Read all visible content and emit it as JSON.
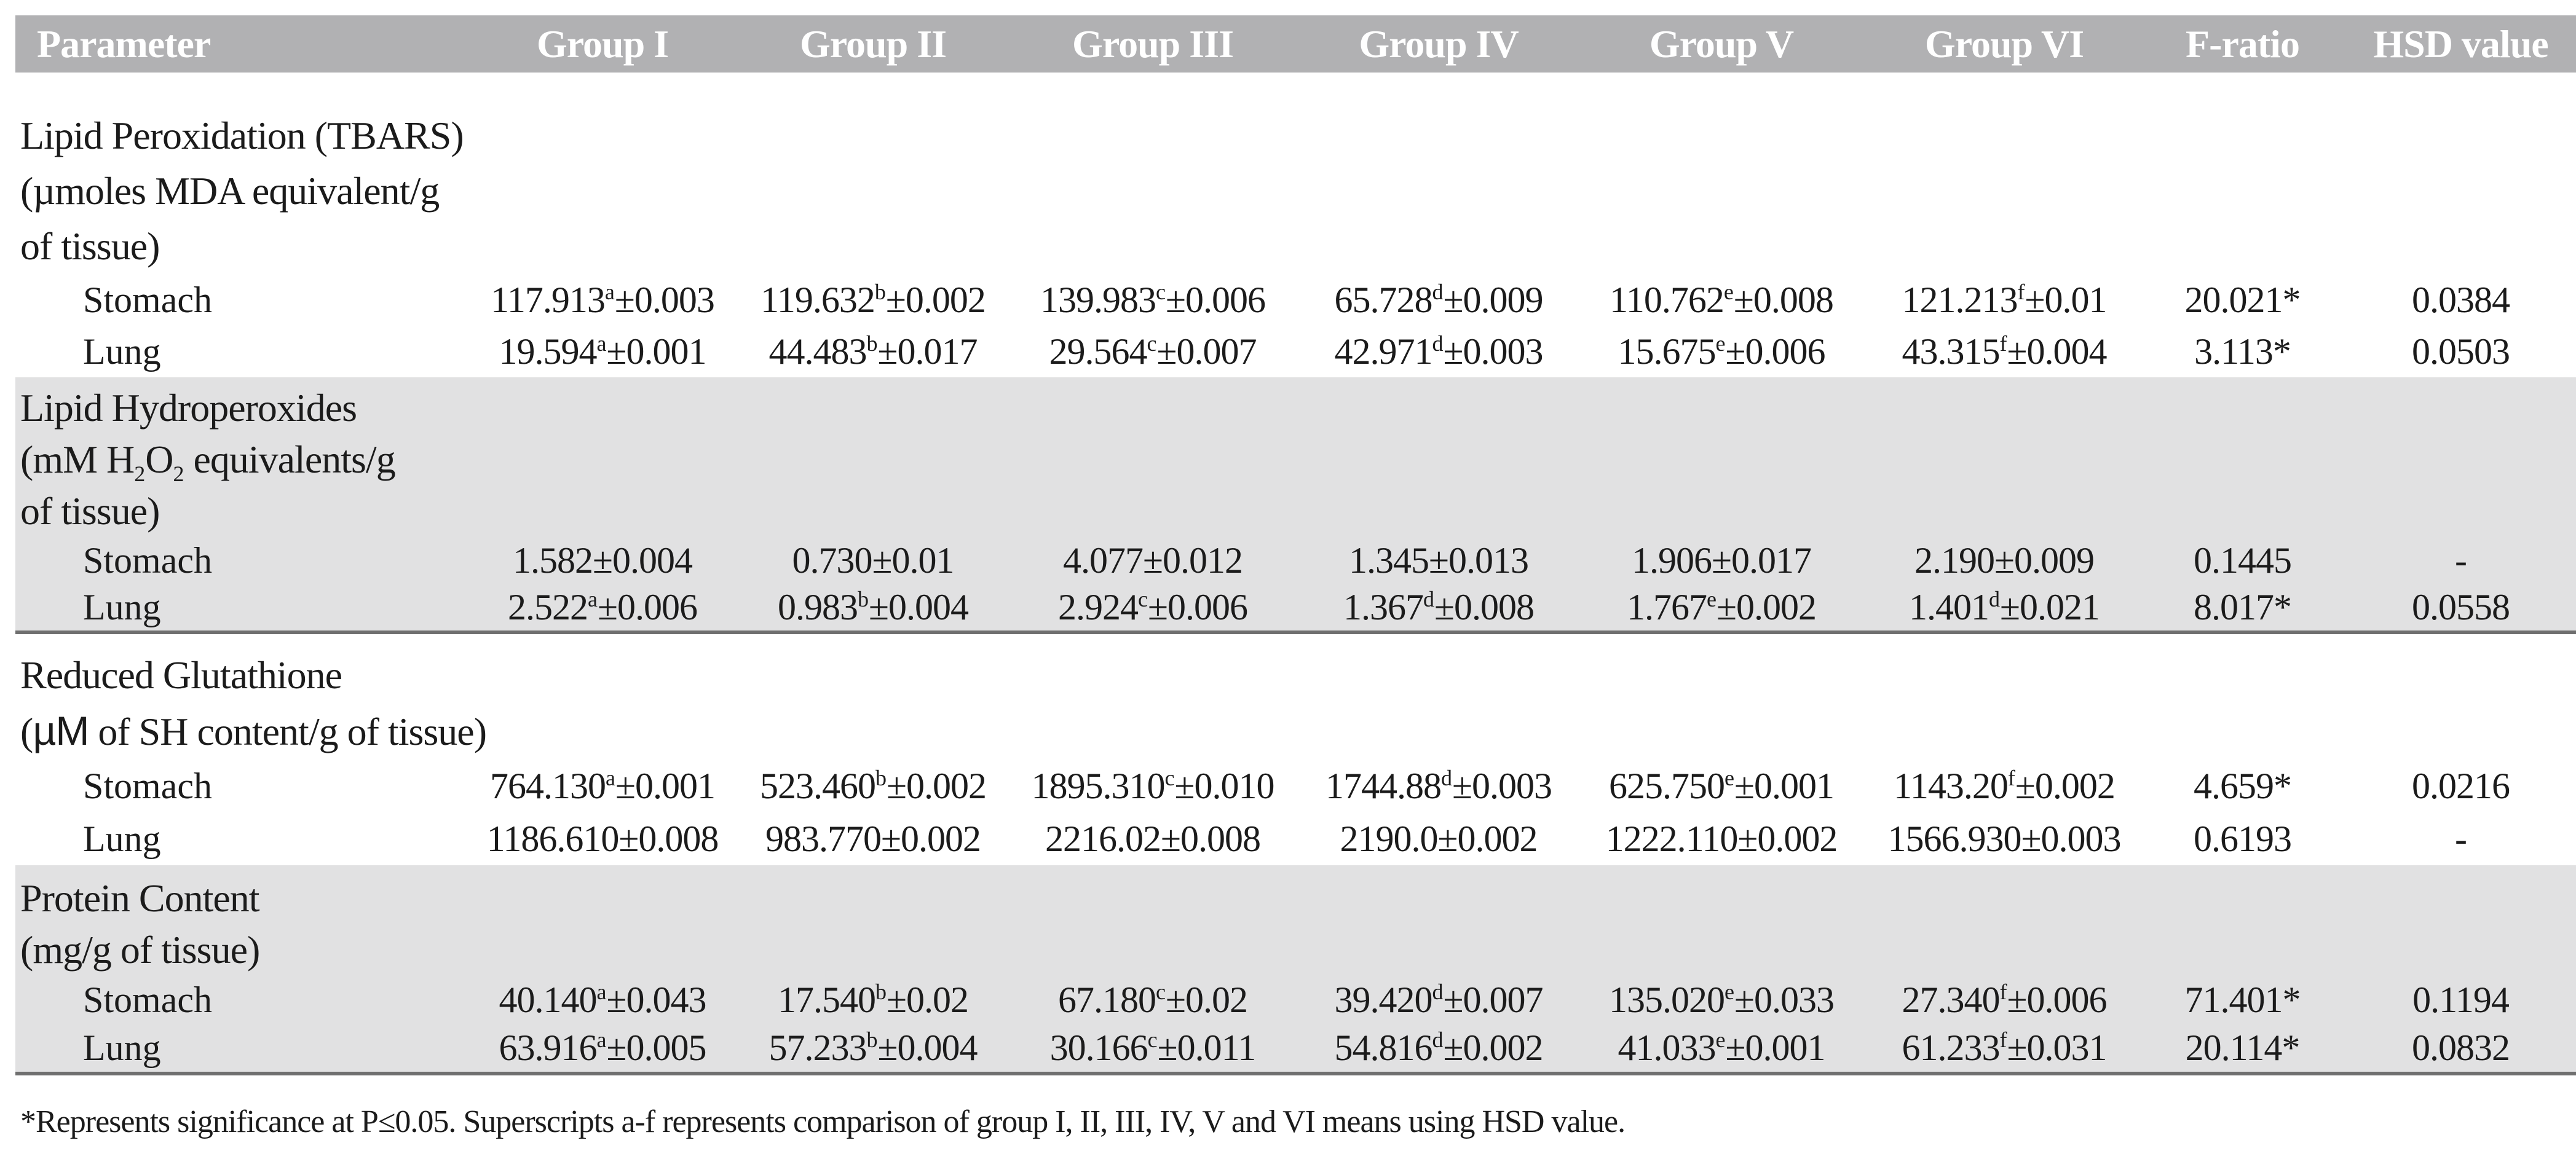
{
  "colors": {
    "header_bg": "#b1b1b3",
    "shade_bg": "#e1e1e2",
    "rule": "#6f6f6f",
    "text": "#1b1b1b",
    "header_text": "#ffffff"
  },
  "table": {
    "columns": [
      {
        "key": "parameter",
        "label": "Parameter"
      },
      {
        "key": "group-i",
        "label": "Group I"
      },
      {
        "key": "group-ii",
        "label": "Group II"
      },
      {
        "key": "group-iii",
        "label": "Group III"
      },
      {
        "key": "group-iv",
        "label": "Group IV"
      },
      {
        "key": "group-v",
        "label": "Group V"
      },
      {
        "key": "group-vi",
        "label": "Group VI"
      },
      {
        "key": "f-ratio",
        "label": "F-ratio"
      },
      {
        "key": "hsd-value",
        "label": "HSD value"
      }
    ],
    "sections": [
      {
        "shaded": false,
        "bottom_rule": false,
        "title_lines": [
          [
            {
              "t": "Lipid Peroxidation (TBARS)"
            }
          ],
          [
            {
              "t": "(µmoles MDA equivalent/g"
            }
          ],
          [
            {
              "t": "of tissue)"
            }
          ]
        ],
        "rows": [
          {
            "label": "Stomach",
            "cells": [
              {
                "m": "117.913",
                "s": "a",
                "e": "0.003"
              },
              {
                "m": "119.632",
                "s": "b",
                "e": "0.002"
              },
              {
                "m": "139.983",
                "s": "c",
                "e": "0.006"
              },
              {
                "m": "65.728",
                "s": "d",
                "e": "0.009"
              },
              {
                "m": "110.762",
                "s": "e",
                "e": "0.008"
              },
              {
                "m": "121.213",
                "s": "f",
                "e": "0.01"
              },
              {
                "m": "20.021*"
              },
              {
                "m": "0.0384"
              }
            ]
          },
          {
            "label": "Lung",
            "cells": [
              {
                "m": "19.594",
                "s": "a",
                "e": "0.001"
              },
              {
                "m": "44.483",
                "s": "b",
                "e": "0.017"
              },
              {
                "m": "29.564",
                "s": "c",
                "e": "0.007"
              },
              {
                "m": "42.971",
                "s": "d",
                "e": "0.003"
              },
              {
                "m": "15.675",
                "s": "e",
                "e": "0.006"
              },
              {
                "m": "43.315",
                "s": "f",
                "e": "0.004"
              },
              {
                "m": "3.113*"
              },
              {
                "m": "0.0503"
              }
            ]
          }
        ]
      },
      {
        "shaded": true,
        "bottom_rule": true,
        "title_lines": [
          [
            {
              "t": "Lipid Hydroperoxides"
            }
          ],
          [
            {
              "t": "(mM H"
            },
            {
              "sub": "2"
            },
            {
              "t": "O"
            },
            {
              "sub": "2"
            },
            {
              "t": " equivalents/g"
            }
          ],
          [
            {
              "t": "of tissue)"
            }
          ]
        ],
        "rows": [
          {
            "label": "Stomach",
            "cells": [
              {
                "m": "1.582",
                "e": "0.004"
              },
              {
                "m": "0.730",
                "e": "0.01"
              },
              {
                "m": "4.077",
                "e": "0.012"
              },
              {
                "m": "1.345",
                "e": "0.013"
              },
              {
                "m": "1.906",
                "e": "0.017"
              },
              {
                "m": "2.190",
                "e": "0.009"
              },
              {
                "m": "0.1445"
              },
              {
                "m": "-"
              }
            ]
          },
          {
            "label": "Lung",
            "cells": [
              {
                "m": "2.522",
                "s": "a",
                "e": "0.006"
              },
              {
                "m": "0.983",
                "s": "b",
                "e": "0.004"
              },
              {
                "m": "2.924",
                "s": "c",
                "e": "0.006"
              },
              {
                "m": "1.367",
                "s": "d",
                "e": "0.008"
              },
              {
                "m": "1.767",
                "s": "e",
                "e": "0.002"
              },
              {
                "m": "1.401",
                "s": "d",
                "e": "0.021"
              },
              {
                "m": "8.017*"
              },
              {
                "m": "0.0558"
              }
            ]
          }
        ]
      },
      {
        "shaded": false,
        "bottom_rule": false,
        "title_lines": [
          [
            {
              "t": "Reduced Glutathione"
            }
          ],
          [
            {
              "t": "("
            },
            {
              "sans": "µM"
            },
            {
              "t": " of SH content/g of tissue)"
            }
          ]
        ],
        "rows": [
          {
            "label": "Stomach",
            "cells": [
              {
                "m": "764.130",
                "s": "a",
                "e": "0.001"
              },
              {
                "m": "523.460",
                "s": "b",
                "e": "0.002"
              },
              {
                "m": "1895.310",
                "s": "c",
                "e": "0.010"
              },
              {
                "m": "1744.88",
                "s": "d",
                "e": "0.003"
              },
              {
                "m": "625.750",
                "s": "e",
                "e": "0.001"
              },
              {
                "m": "1143.20",
                "s": "f",
                "e": "0.002"
              },
              {
                "m": "4.659*"
              },
              {
                "m": "0.0216"
              }
            ]
          },
          {
            "label": "Lung",
            "cells": [
              {
                "m": "1186.610",
                "e": "0.008"
              },
              {
                "m": "983.770",
                "e": "0.002"
              },
              {
                "m": "2216.02",
                "e": "0.008"
              },
              {
                "m": "2190.0",
                "e": "0.002"
              },
              {
                "m": "1222.110",
                "e": "0.002"
              },
              {
                "m": "1566.930",
                "e": "0.003"
              },
              {
                "m": "0.6193"
              },
              {
                "m": "-"
              }
            ]
          }
        ]
      },
      {
        "shaded": true,
        "bottom_rule": true,
        "title_lines": [
          [
            {
              "t": "Protein Content"
            }
          ],
          [
            {
              "t": "(mg/g of tissue)"
            }
          ]
        ],
        "rows": [
          {
            "label": "Stomach",
            "cells": [
              {
                "m": "40.140",
                "s": "a",
                "e": "0.043"
              },
              {
                "m": "17.540",
                "s": "b",
                "e": "0.02"
              },
              {
                "m": "67.180",
                "s": "c",
                "e": "0.02"
              },
              {
                "m": "39.420",
                "s": "d",
                "e": "0.007"
              },
              {
                "m": "135.020",
                "s": "e",
                "e": "0.033"
              },
              {
                "m": "27.340",
                "s": "f",
                "e": "0.006"
              },
              {
                "m": "71.401*"
              },
              {
                "m": "0.1194"
              }
            ]
          },
          {
            "label": "Lung",
            "cells": [
              {
                "m": "63.916",
                "s": "a",
                "e": "0.005"
              },
              {
                "m": "57.233",
                "s": "b",
                "e": "0.004"
              },
              {
                "m": "30.166",
                "s": "c",
                "e": "0.011"
              },
              {
                "m": "54.816",
                "s": "d",
                "e": "0.002"
              },
              {
                "m": "41.033",
                "s": "e",
                "e": "0.001"
              },
              {
                "m": "61.233",
                "s": "f",
                "e": "0.031"
              },
              {
                "m": "20.114*"
              },
              {
                "m": "0.0832"
              }
            ]
          }
        ]
      }
    ],
    "footnote": "*Represents significance at P≤0.05. Superscripts a-f represents comparison of group I, II, III, IV, V and VI means using HSD value."
  }
}
